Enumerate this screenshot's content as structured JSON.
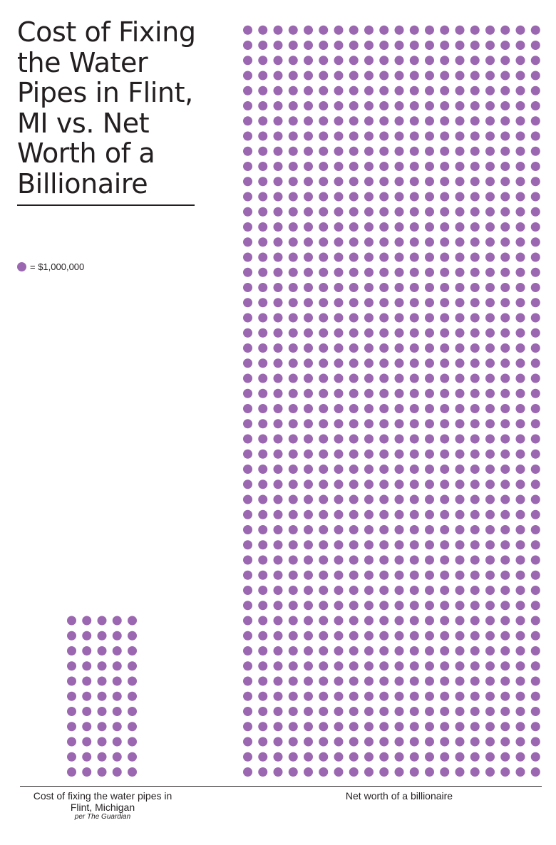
{
  "colors": {
    "dot": "#9b67b1",
    "text": "#231f20",
    "background": "#ffffff"
  },
  "chart_data": {
    "type": "unit-dot",
    "title": "Cost of Fixing the Water Pipes in Flint, MI vs. Net Worth of a Billionaire",
    "legend": {
      "symbol": "dot",
      "text": "= $1,000,000",
      "unit_value": 1000000
    },
    "categories": [
      {
        "label": "Cost of fixing the water pipes in Flint, Michigan",
        "source": "per The Guardian",
        "value_dots": 55,
        "columns": 5,
        "rows": 11
      },
      {
        "label": "Net worth of a billionaire",
        "value_dots": 1000,
        "columns": 20,
        "rows": 50
      }
    ]
  }
}
